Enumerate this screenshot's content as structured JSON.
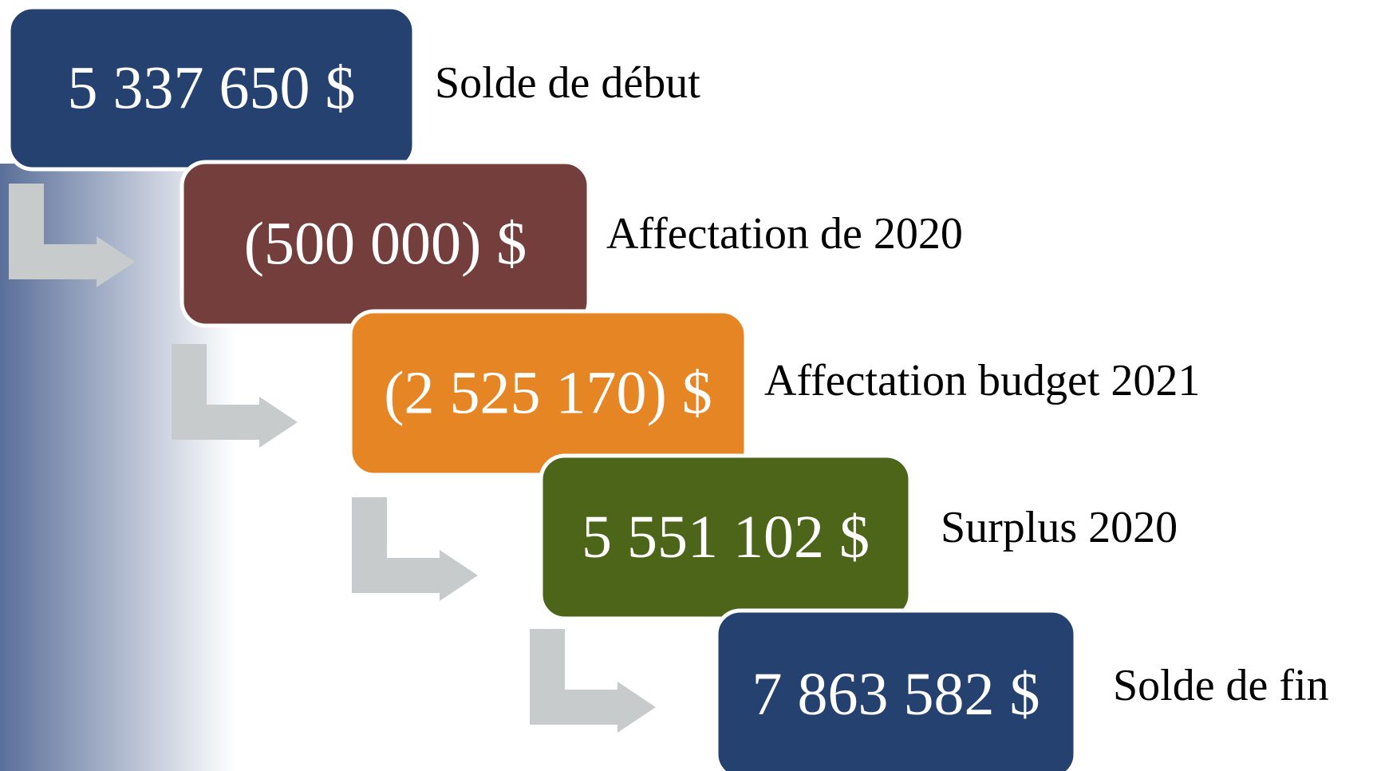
{
  "steps": [
    {
      "value": "5 337 650 $",
      "label": "Solde de début",
      "color": "#25416f"
    },
    {
      "value": "(500 000) $",
      "label": "Affectation de 2020",
      "color": "#743e3c"
    },
    {
      "value": "(2 525 170) $",
      "label": "Affectation budget 2021",
      "color": "#e58524"
    },
    {
      "value": "5 551 102 $",
      "label": "Surplus 2020",
      "color": "#4c6519"
    },
    {
      "value": "7 863 582 $",
      "label": "Solde de fin",
      "color": "#25416f"
    }
  ]
}
